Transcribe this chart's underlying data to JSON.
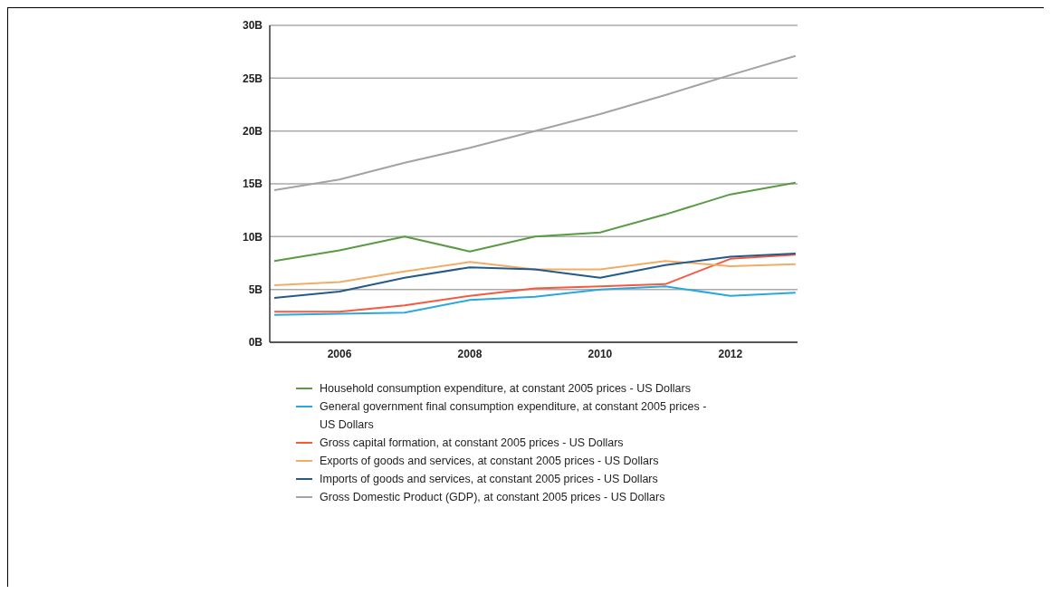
{
  "chart_data": {
    "type": "line",
    "x": [
      2005,
      2006,
      2007,
      2008,
      2009,
      2010,
      2011,
      2012,
      2013
    ],
    "xlim": [
      2004.93,
      2013.03
    ],
    "xticks": [
      2006,
      2008,
      2010,
      2012
    ],
    "ylim": [
      0,
      30
    ],
    "yticks": [
      {
        "value": 0,
        "label": "0B"
      },
      {
        "value": 5,
        "label": "5B"
      },
      {
        "value": 10,
        "label": "10B"
      },
      {
        "value": 15,
        "label": "15B"
      },
      {
        "value": 20,
        "label": "20B"
      },
      {
        "value": 25,
        "label": "25B"
      },
      {
        "value": 30,
        "label": "30B"
      }
    ],
    "grid": "y",
    "legend": "bottom",
    "series": [
      {
        "name": "Household consumption expenditure, at constant 2005 prices - US Dollars",
        "color": "#5a9a45",
        "values": [
          7.7,
          8.7,
          10.0,
          8.6,
          10.0,
          10.4,
          12.1,
          14.0,
          15.1
        ]
      },
      {
        "name": "General government final consumption expenditure, at constant 2005 prices - US Dollars",
        "color": "#29a8e0",
        "values": [
          2.6,
          2.7,
          2.8,
          4.0,
          4.3,
          5.0,
          5.3,
          4.4,
          4.7
        ]
      },
      {
        "name": "Gross capital formation, at constant 2005 prices - US Dollars",
        "color": "#f65a3e",
        "values": [
          2.9,
          2.9,
          3.5,
          4.4,
          5.1,
          5.3,
          5.5,
          7.9,
          8.3
        ]
      },
      {
        "name": "Exports of goods and services, at constant 2005 prices - US Dollars",
        "color": "#f0ad66",
        "values": [
          5.4,
          5.7,
          6.7,
          7.6,
          6.9,
          6.9,
          7.7,
          7.2,
          7.4
        ]
      },
      {
        "name": "Imports of goods and services, at constant 2005 prices - US Dollars",
        "color": "#245a8a",
        "values": [
          4.2,
          4.8,
          6.1,
          7.1,
          6.9,
          6.1,
          7.3,
          8.1,
          8.4
        ]
      },
      {
        "name": "Gross Domestic Product (GDP), at constant 2005 prices - US Dollars",
        "color": "#a3a3a3",
        "values": [
          14.4,
          15.4,
          17.0,
          18.4,
          20.0,
          21.6,
          23.4,
          25.3,
          27.1
        ]
      }
    ]
  }
}
